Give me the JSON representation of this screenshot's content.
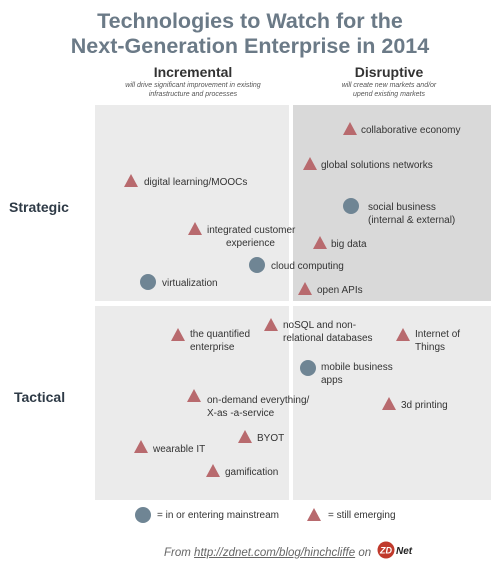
{
  "title": {
    "line1": "Technologies to Watch for the",
    "line2": "Next-Generation Enterprise in 2014"
  },
  "columns": {
    "incremental": {
      "heading": "Incremental",
      "sub_line1": "will drive significant improvement in existing",
      "sub_line2": "infrastructure and processes"
    },
    "disruptive": {
      "heading": "Disruptive",
      "sub_line1": "will create new markets and/or",
      "sub_line2": "upend existing markets"
    }
  },
  "rows": {
    "strategic": "Strategic",
    "tactical": "Tactical"
  },
  "colors": {
    "emerging": "#b86a6e",
    "mainstream": "#6f8594",
    "title": "#6b7a87",
    "quadrant_light": "#ebebeb",
    "quadrant_dark": "#d9d9d9"
  },
  "items": {
    "collaborative_economy": {
      "label": "collaborative economy",
      "status": "still emerging"
    },
    "global_solutions_networks": {
      "label": "global solutions networks",
      "status": "still emerging"
    },
    "digital_learning": {
      "label": "digital learning/MOOCs",
      "status": "still emerging"
    },
    "social_business": {
      "line1": "social business",
      "line2": "(internal & external)",
      "status": "in or entering mainstream"
    },
    "integrated_customer": {
      "line1": "integrated customer",
      "line2": "experience",
      "status": "still emerging"
    },
    "big_data": {
      "label": "big data",
      "status": "still emerging"
    },
    "cloud_computing": {
      "label": "cloud computing",
      "status": "in or entering mainstream"
    },
    "virtualization": {
      "label": "virtualization",
      "status": "in or entering mainstream"
    },
    "open_apis": {
      "label": "open APIs",
      "status": "still emerging"
    },
    "quantified_enterprise": {
      "line1": "the quantified",
      "line2": "enterprise",
      "status": "still emerging"
    },
    "nosql": {
      "line1": "noSQL and non-",
      "line2": "relational databases",
      "status": "still emerging"
    },
    "internet_of_things": {
      "line1": "Internet of",
      "line2": "Things",
      "status": "still emerging"
    },
    "mobile_business_apps": {
      "line1": "mobile business",
      "line2": "apps",
      "status": "in or entering mainstream"
    },
    "on_demand": {
      "line1": "on-demand everything/",
      "line2": "X-as -a-service",
      "status": "still emerging"
    },
    "printing_3d": {
      "label": "3d printing",
      "status": "still emerging"
    },
    "byot": {
      "label": "BYOT",
      "status": "still emerging"
    },
    "wearable_it": {
      "label": "wearable IT",
      "status": "still emerging"
    },
    "gamification": {
      "label": "gamification",
      "status": "still emerging"
    }
  },
  "legend": {
    "mainstream": "= in or entering mainstream",
    "emerging": "= still emerging"
  },
  "footer": {
    "prefix": "From",
    "url": "http://zdnet.com/blog/hinchcliffe",
    "on": "on",
    "logo_text": "ZDNet"
  }
}
